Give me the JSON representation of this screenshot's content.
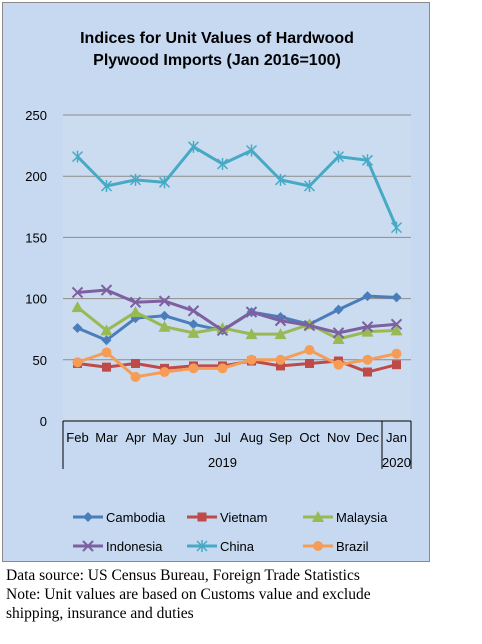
{
  "chart_data": {
    "type": "line",
    "title": "Indices for Unit Values of Hardwood Plywood Imports (Jan 2016=100)",
    "title_lines": [
      "Indices for Unit Values of Hardwood",
      "Plywood Imports (Jan 2016=100)"
    ],
    "categories": [
      "Feb",
      "Mar",
      "Apr",
      "May",
      "Jun",
      "Jul",
      "Aug",
      "Sep",
      "Oct",
      "Nov",
      "Dec",
      "Jan"
    ],
    "year_labels": [
      "2019",
      "2020"
    ],
    "ylim": [
      0,
      250
    ],
    "yticks": [
      0,
      50,
      100,
      150,
      200,
      250
    ],
    "grid": true,
    "legend_position": "bottom",
    "plot_background": "#ccdcf0",
    "series": [
      {
        "name": "Cambodia",
        "color": "#4a7ebb",
        "marker": "diamond",
        "values": [
          76,
          66,
          84,
          86,
          79,
          74,
          89,
          85,
          79,
          91,
          102,
          101
        ]
      },
      {
        "name": "Vietnam",
        "color": "#be4b48",
        "marker": "square",
        "values": [
          47,
          44,
          47,
          43,
          45,
          45,
          49,
          45,
          47,
          49,
          40,
          46
        ]
      },
      {
        "name": "Malaysia",
        "color": "#98b954",
        "marker": "triangle",
        "values": [
          93,
          74,
          89,
          77,
          72,
          76,
          71,
          71,
          79,
          67,
          73,
          74
        ]
      },
      {
        "name": "Indonesia",
        "color": "#7d60a0",
        "marker": "x",
        "values": [
          105,
          107,
          97,
          98,
          90,
          74,
          89,
          82,
          78,
          72,
          77,
          79
        ]
      },
      {
        "name": "China",
        "color": "#46aac5",
        "marker": "star",
        "values": [
          216,
          192,
          197,
          195,
          224,
          210,
          221,
          197,
          192,
          216,
          213,
          158
        ]
      },
      {
        "name": "Brazil",
        "color": "#f59d56",
        "marker": "circle",
        "values": [
          48,
          56,
          36,
          40,
          43,
          43,
          50,
          50,
          58,
          46,
          50,
          55
        ]
      }
    ]
  },
  "notes": {
    "source": "Data source: US Census Bureau, Foreign Trade Statistics",
    "note_line1": "Note: Unit values are based on Customs value and exclude",
    "note_line2": "shipping, insurance and duties"
  }
}
